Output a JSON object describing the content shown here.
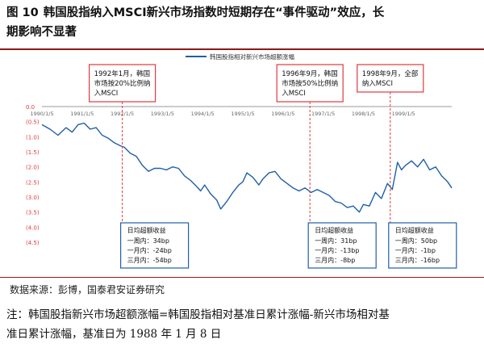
{
  "figure": {
    "number": "图 10",
    "title_line1": "韩国股指纳入MSCI新兴市场指数时短期存在“事件驱动”效应，长",
    "title_line2": "期影响不显著"
  },
  "source": "数据来源：彭博，国泰君安证券研究",
  "note_line1": "注：韩国股指新兴市场超额涨幅=韩国股指相对基准日累计涨幅-新兴市场相对基",
  "note_line2": "准日累计涨幅，基准日为 1988 年 1 月 8 日",
  "colors": {
    "series": "#1f5fa8",
    "box": "#e0393e",
    "axis_label": "#e0393e",
    "title_rule": "#8b1a1a"
  },
  "chart_data": {
    "type": "line",
    "legend": {
      "label": "韩国股指相对新兴市场超额涨幅",
      "placement": "top-center"
    },
    "x_ticks": [
      "1990/1/5",
      "1991/1/5",
      "1992/1/5",
      "1993/1/5",
      "1994/1/5",
      "1995/1/5",
      "1996/1/5",
      "1997/1/5",
      "1998/1/5",
      "1999/1/5"
    ],
    "y_ticks": [
      "0.0",
      "(0.5)",
      "(1.0)",
      "(1.5)",
      "(2.0)",
      "(2.5)",
      "(3.0)",
      "(3.5)",
      "(4.0)",
      "(4.5)"
    ],
    "ylim": [
      -4.5,
      0.0
    ],
    "xlim": [
      1990.0,
      2000.2
    ],
    "series": [
      {
        "name": "韩国股指相对新兴市场超额涨幅",
        "points": [
          [
            1990.0,
            -0.6
          ],
          [
            1990.2,
            -0.75
          ],
          [
            1990.4,
            -0.95
          ],
          [
            1990.6,
            -0.7
          ],
          [
            1990.75,
            -0.85
          ],
          [
            1990.9,
            -0.6
          ],
          [
            1991.05,
            -0.55
          ],
          [
            1991.2,
            -0.75
          ],
          [
            1991.35,
            -0.7
          ],
          [
            1991.5,
            -0.95
          ],
          [
            1991.65,
            -1.05
          ],
          [
            1991.8,
            -1.2
          ],
          [
            1991.95,
            -1.3
          ],
          [
            1992.05,
            -1.35
          ],
          [
            1992.2,
            -1.55
          ],
          [
            1992.35,
            -1.65
          ],
          [
            1992.5,
            -1.95
          ],
          [
            1992.65,
            -2.15
          ],
          [
            1992.8,
            -2.05
          ],
          [
            1992.95,
            -2.05
          ],
          [
            1993.1,
            -2.1
          ],
          [
            1993.25,
            -2.0
          ],
          [
            1993.4,
            -2.05
          ],
          [
            1993.55,
            -2.3
          ],
          [
            1993.7,
            -2.45
          ],
          [
            1993.85,
            -2.65
          ],
          [
            1993.95,
            -2.8
          ],
          [
            1994.05,
            -2.6
          ],
          [
            1994.2,
            -2.9
          ],
          [
            1994.35,
            -3.1
          ],
          [
            1994.45,
            -3.4
          ],
          [
            1994.6,
            -3.15
          ],
          [
            1994.75,
            -2.85
          ],
          [
            1994.9,
            -2.6
          ],
          [
            1995.0,
            -2.5
          ],
          [
            1995.1,
            -2.2
          ],
          [
            1995.25,
            -2.35
          ],
          [
            1995.4,
            -2.6
          ],
          [
            1995.5,
            -2.4
          ],
          [
            1995.65,
            -2.2
          ],
          [
            1995.8,
            -2.15
          ],
          [
            1995.95,
            -2.4
          ],
          [
            1996.1,
            -2.55
          ],
          [
            1996.25,
            -2.7
          ],
          [
            1996.4,
            -2.8
          ],
          [
            1996.55,
            -2.7
          ],
          [
            1996.7,
            -2.85
          ],
          [
            1996.85,
            -2.75
          ],
          [
            1997.0,
            -2.85
          ],
          [
            1997.15,
            -2.95
          ],
          [
            1997.3,
            -3.15
          ],
          [
            1997.45,
            -3.2
          ],
          [
            1997.6,
            -3.35
          ],
          [
            1997.75,
            -3.3
          ],
          [
            1997.9,
            -3.5
          ],
          [
            1998.0,
            -3.25
          ],
          [
            1998.15,
            -3.3
          ],
          [
            1998.3,
            -2.85
          ],
          [
            1998.45,
            -3.05
          ],
          [
            1998.6,
            -2.55
          ],
          [
            1998.72,
            -2.75
          ],
          [
            1998.85,
            -1.85
          ],
          [
            1998.95,
            -2.1
          ],
          [
            1999.05,
            -1.95
          ],
          [
            1999.2,
            -1.8
          ],
          [
            1999.35,
            -2.0
          ],
          [
            1999.5,
            -1.75
          ],
          [
            1999.65,
            -2.1
          ],
          [
            1999.8,
            -2.0
          ],
          [
            1999.95,
            -2.3
          ],
          [
            2000.1,
            -2.5
          ],
          [
            2000.2,
            -2.7
          ]
        ]
      }
    ],
    "events": [
      {
        "event_lines": [
          "1992年1月，韩国",
          "市场按20%比例纳",
          "入MSCI"
        ],
        "x": 1992.0,
        "box_title": "日均超额收益",
        "stats": [
          "一周内：34bp",
          "一月内：-24bp",
          "三月内：-54bp"
        ]
      },
      {
        "event_lines": [
          "1996年9月，韩国",
          "市场按50%比例纳",
          "入MSCI"
        ],
        "x": 1996.67,
        "box_title": "日均超额收益",
        "stats": [
          "一周内：31bp",
          "一月内：-13bp",
          "三月内：-8bp"
        ]
      },
      {
        "event_lines": [
          "1998年9月，全部",
          "纳入MSCI"
        ],
        "x": 1998.67,
        "box_title": "日均超额收益",
        "stats": [
          "一周内：50bp",
          "一月内：-1bp",
          "三月内：-16bp"
        ]
      }
    ]
  }
}
